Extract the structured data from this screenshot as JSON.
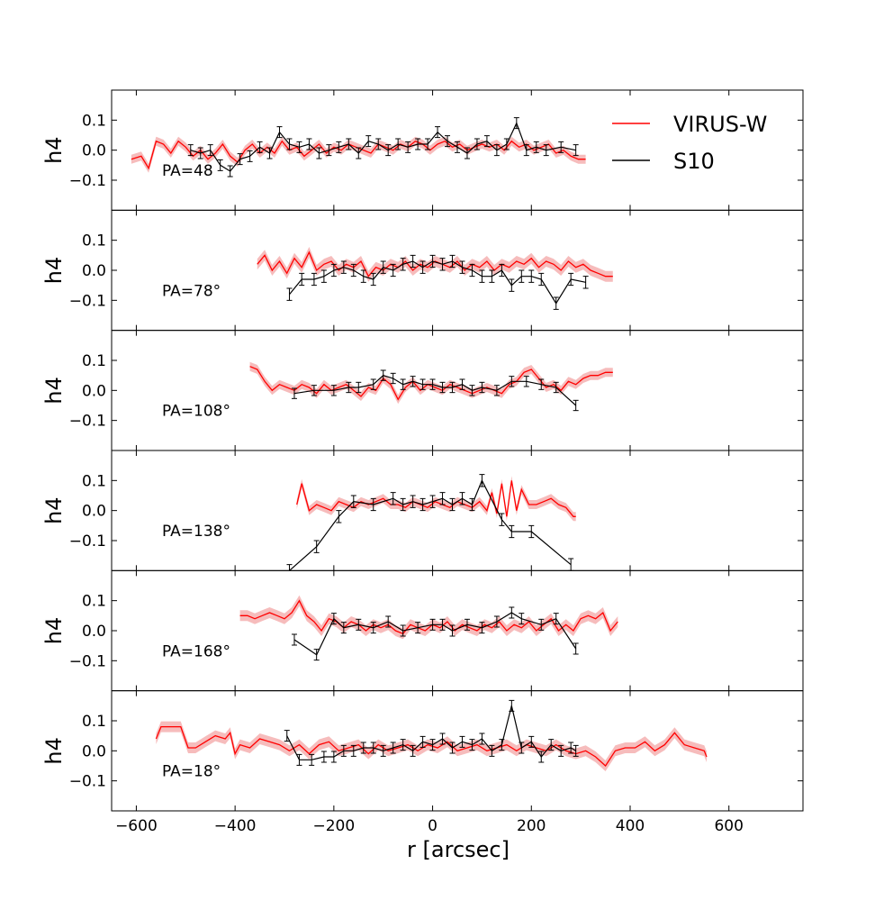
{
  "figure": {
    "xlabel": "r [arcsec]",
    "ylabel": "h4",
    "legend": {
      "placement": "top-right",
      "entries": [
        {
          "label": "VIRUS-W",
          "color": "#ff0000"
        },
        {
          "label": "S10",
          "color": "#000000"
        }
      ]
    },
    "colors": {
      "virus": "#ff0000",
      "virus_band": "#f4b0b0",
      "s10": "#000000"
    }
  },
  "chart_data": {
    "type": "line",
    "shared_xlim": [
      -650,
      750
    ],
    "shared_ylim": [
      -0.2,
      0.2
    ],
    "xticks": [
      -600,
      -400,
      -200,
      0,
      200,
      400,
      600
    ],
    "xtick_labels": [
      "−600",
      "−400",
      "−200",
      "0",
      "200",
      "400",
      "600"
    ],
    "yticks": [
      0.1,
      0.0,
      -0.1
    ],
    "ytick_labels": [
      "0.1",
      "0.0",
      "−0.1"
    ],
    "panels": [
      {
        "label": "PA=48",
        "virus": {
          "x": [
            -610,
            -590,
            -575,
            -560,
            -545,
            -530,
            -515,
            -500,
            -485,
            -470,
            -455,
            -440,
            -425,
            -410,
            -395,
            -380,
            -365,
            -350,
            -335,
            -320,
            -305,
            -290,
            -275,
            -260,
            -245,
            -230,
            -215,
            -200,
            -185,
            -170,
            -155,
            -140,
            -125,
            -110,
            -95,
            -80,
            -65,
            -50,
            -35,
            -20,
            -5,
            10,
            25,
            40,
            55,
            70,
            85,
            100,
            115,
            130,
            145,
            160,
            175,
            190,
            205,
            220,
            235,
            250,
            265,
            280,
            295,
            310
          ],
          "y": [
            -0.03,
            -0.02,
            -0.06,
            0.03,
            0.02,
            -0.01,
            0.03,
            0.01,
            -0.02,
            0.0,
            -0.03,
            -0.01,
            0.02,
            -0.02,
            -0.04,
            0.0,
            0.02,
            -0.01,
            0.01,
            -0.01,
            0.03,
            0.0,
            0.01,
            -0.02,
            0.0,
            0.02,
            -0.01,
            0.01,
            0.0,
            0.02,
            0.01,
            0.0,
            -0.01,
            0.02,
            0.01,
            0.0,
            0.02,
            0.01,
            0.03,
            0.02,
            0.0,
            0.02,
            0.03,
            0.01,
            0.02,
            0.0,
            0.01,
            0.02,
            0.01,
            0.02,
            0.0,
            0.03,
            0.01,
            0.02,
            0.0,
            0.01,
            0.02,
            -0.01,
            0.0,
            -0.02,
            -0.03,
            -0.03
          ],
          "err": 0.015
        },
        "s10": {
          "x": [
            -490,
            -470,
            -450,
            -430,
            -410,
            -390,
            -370,
            -350,
            -330,
            -310,
            -290,
            -270,
            -250,
            -230,
            -210,
            -190,
            -170,
            -150,
            -130,
            -110,
            -90,
            -70,
            -50,
            -30,
            -10,
            10,
            30,
            50,
            70,
            90,
            110,
            130,
            150,
            170,
            190,
            210,
            230,
            260,
            290
          ],
          "y": [
            0.0,
            -0.01,
            0.0,
            -0.05,
            -0.07,
            -0.03,
            -0.02,
            0.01,
            -0.01,
            0.06,
            0.02,
            0.01,
            0.02,
            -0.01,
            0.0,
            0.01,
            0.02,
            -0.01,
            0.03,
            0.02,
            0.0,
            0.02,
            0.01,
            0.02,
            0.02,
            0.06,
            0.03,
            0.01,
            -0.01,
            0.02,
            0.03,
            0.0,
            0.02,
            0.09,
            0.0,
            0.01,
            0.0,
            0.01,
            0.0
          ],
          "err": 0.018
        }
      },
      {
        "label": "PA=78°",
        "virus": {
          "x": [
            -355,
            -340,
            -325,
            -310,
            -295,
            -280,
            -265,
            -250,
            -235,
            -220,
            -205,
            -190,
            -175,
            -160,
            -145,
            -130,
            -115,
            -100,
            -85,
            -70,
            -55,
            -40,
            -25,
            -10,
            5,
            20,
            35,
            50,
            65,
            80,
            95,
            110,
            125,
            140,
            155,
            170,
            185,
            200,
            215,
            230,
            245,
            260,
            275,
            290,
            305,
            320,
            335,
            350,
            365
          ],
          "y": [
            0.02,
            0.05,
            0.0,
            0.03,
            -0.01,
            0.04,
            0.01,
            0.06,
            0.0,
            0.02,
            0.03,
            0.0,
            0.02,
            0.01,
            0.03,
            -0.02,
            0.01,
            0.0,
            0.02,
            0.01,
            0.03,
            0.0,
            0.02,
            0.01,
            0.03,
            0.02,
            0.01,
            0.03,
            0.0,
            0.02,
            0.01,
            0.03,
            0.0,
            0.02,
            0.01,
            0.03,
            0.02,
            0.04,
            0.01,
            0.03,
            0.02,
            0.0,
            0.03,
            0.01,
            0.02,
            0.0,
            -0.01,
            -0.02,
            -0.02
          ],
          "err": 0.018
        },
        "s10": {
          "x": [
            -290,
            -265,
            -240,
            -220,
            -200,
            -180,
            -160,
            -140,
            -120,
            -100,
            -80,
            -60,
            -40,
            -20,
            0,
            20,
            40,
            60,
            80,
            100,
            120,
            140,
            160,
            180,
            200,
            220,
            250,
            280,
            310
          ],
          "y": [
            -0.08,
            -0.03,
            -0.03,
            -0.02,
            0.0,
            0.01,
            0.0,
            -0.02,
            -0.03,
            0.01,
            0.0,
            0.02,
            0.03,
            0.01,
            0.03,
            0.02,
            0.03,
            0.01,
            0.0,
            -0.02,
            -0.02,
            0.0,
            -0.05,
            -0.02,
            -0.02,
            -0.03,
            -0.11,
            -0.03,
            -0.04
          ],
          "err": 0.02
        }
      },
      {
        "label": "PA=108°",
        "virus": {
          "x": [
            -370,
            -355,
            -340,
            -325,
            -310,
            -295,
            -280,
            -265,
            -250,
            -235,
            -220,
            -205,
            -190,
            -175,
            -160,
            -145,
            -130,
            -115,
            -100,
            -85,
            -70,
            -55,
            -40,
            -25,
            -10,
            5,
            20,
            35,
            50,
            65,
            80,
            95,
            110,
            125,
            140,
            155,
            170,
            185,
            200,
            215,
            230,
            245,
            260,
            275,
            290,
            305,
            320,
            335,
            350,
            365
          ],
          "y": [
            0.08,
            0.07,
            0.03,
            0.0,
            0.02,
            0.01,
            0.0,
            0.02,
            0.01,
            -0.01,
            0.02,
            0.0,
            0.01,
            0.02,
            0.0,
            -0.02,
            0.01,
            0.0,
            0.04,
            0.02,
            -0.03,
            0.01,
            0.03,
            0.0,
            0.02,
            0.01,
            0.0,
            0.02,
            0.01,
            0.0,
            -0.01,
            0.0,
            0.01,
            0.0,
            -0.01,
            0.02,
            0.03,
            0.06,
            0.07,
            0.04,
            0.01,
            0.02,
            0.0,
            0.03,
            0.02,
            0.04,
            0.05,
            0.05,
            0.06,
            0.06
          ],
          "err": 0.015
        },
        "s10": {
          "x": [
            -280,
            -240,
            -200,
            -170,
            -150,
            -120,
            -100,
            -80,
            -60,
            -40,
            -20,
            0,
            20,
            40,
            60,
            80,
            100,
            130,
            160,
            190,
            220,
            250,
            290
          ],
          "y": [
            -0.01,
            0.0,
            0.0,
            0.01,
            0.01,
            0.02,
            0.05,
            0.04,
            0.02,
            0.03,
            0.02,
            0.02,
            0.01,
            0.01,
            0.02,
            0.0,
            0.01,
            0.0,
            0.03,
            0.03,
            0.02,
            0.01,
            -0.05
          ],
          "err": 0.017
        }
      },
      {
        "label": "PA=138°",
        "virus": {
          "x": [
            -275,
            -265,
            -250,
            -235,
            -220,
            -205,
            -190,
            -175,
            -160,
            -145,
            -130,
            -115,
            -100,
            -85,
            -70,
            -55,
            -40,
            -25,
            -10,
            5,
            20,
            35,
            50,
            65,
            80,
            95,
            110,
            120,
            130,
            140,
            150,
            160,
            170,
            180,
            195,
            210,
            225,
            240,
            255,
            270,
            285,
            290
          ],
          "y": [
            0.02,
            0.09,
            0.0,
            0.02,
            0.01,
            0.0,
            0.03,
            0.02,
            0.01,
            0.03,
            0.02,
            0.03,
            0.04,
            0.02,
            0.02,
            0.01,
            0.03,
            0.02,
            0.01,
            0.03,
            0.02,
            0.01,
            0.03,
            0.02,
            0.01,
            0.03,
            0.0,
            0.06,
            -0.01,
            0.09,
            -0.02,
            0.1,
            0.0,
            0.07,
            0.02,
            0.02,
            0.03,
            0.04,
            0.02,
            0.01,
            -0.02,
            -0.02
          ],
          "err": 0.015
        },
        "s10": {
          "x": [
            -290,
            -235,
            -190,
            -160,
            -120,
            -80,
            -60,
            -40,
            -20,
            0,
            20,
            40,
            60,
            80,
            100,
            140,
            160,
            200,
            280
          ],
          "y": [
            -0.2,
            -0.12,
            -0.02,
            0.03,
            0.02,
            0.04,
            0.02,
            0.03,
            0.02,
            0.03,
            0.04,
            0.02,
            0.04,
            0.02,
            0.1,
            -0.03,
            -0.07,
            -0.07,
            -0.18
          ],
          "err": 0.02
        }
      },
      {
        "label": "PA=168°",
        "virus": {
          "x": [
            -390,
            -375,
            -360,
            -345,
            -330,
            -315,
            -300,
            -285,
            -270,
            -255,
            -240,
            -225,
            -210,
            -195,
            -180,
            -165,
            -150,
            -135,
            -120,
            -105,
            -90,
            -75,
            -60,
            -45,
            -30,
            -15,
            0,
            15,
            30,
            45,
            60,
            75,
            90,
            105,
            120,
            135,
            150,
            165,
            180,
            195,
            210,
            225,
            240,
            255,
            270,
            285,
            300,
            315,
            330,
            345,
            360,
            375
          ],
          "y": [
            0.05,
            0.05,
            0.04,
            0.05,
            0.06,
            0.05,
            0.04,
            0.06,
            0.1,
            0.05,
            0.03,
            0.0,
            0.04,
            0.03,
            0.01,
            0.03,
            0.02,
            0.0,
            0.02,
            0.01,
            0.02,
            0.0,
            -0.01,
            0.02,
            0.01,
            0.0,
            0.02,
            0.01,
            0.03,
            0.0,
            0.02,
            0.01,
            0.0,
            0.02,
            0.01,
            0.03,
            0.0,
            0.02,
            0.01,
            0.03,
            0.0,
            0.02,
            0.04,
            0.0,
            0.02,
            0.0,
            0.04,
            0.05,
            0.04,
            0.06,
            0.0,
            0.03
          ],
          "err": 0.018
        },
        "s10": {
          "x": [
            -280,
            -235,
            -200,
            -180,
            -150,
            -120,
            -90,
            -60,
            -30,
            0,
            20,
            40,
            70,
            100,
            130,
            160,
            180,
            220,
            250,
            290
          ],
          "y": [
            -0.03,
            -0.08,
            0.04,
            0.01,
            0.02,
            0.01,
            0.03,
            0.0,
            0.01,
            0.02,
            0.02,
            0.0,
            0.02,
            0.01,
            0.03,
            0.06,
            0.04,
            0.02,
            0.04,
            -0.06
          ],
          "err": 0.018
        }
      },
      {
        "label": "PA=18°",
        "virus": {
          "x": [
            -560,
            -550,
            -530,
            -510,
            -495,
            -480,
            -460,
            -440,
            -420,
            -410,
            -400,
            -390,
            -370,
            -350,
            -330,
            -310,
            -290,
            -270,
            -250,
            -230,
            -210,
            -190,
            -170,
            -150,
            -130,
            -110,
            -90,
            -70,
            -50,
            -30,
            -10,
            10,
            30,
            50,
            70,
            90,
            110,
            130,
            150,
            170,
            190,
            210,
            230,
            250,
            270,
            290,
            310,
            330,
            350,
            370,
            390,
            410,
            430,
            450,
            470,
            490,
            510,
            530,
            550,
            555
          ],
          "y": [
            0.04,
            0.08,
            0.08,
            0.08,
            0.01,
            0.01,
            0.03,
            0.05,
            0.04,
            0.06,
            -0.01,
            0.02,
            0.01,
            0.04,
            0.03,
            0.02,
            0.0,
            0.02,
            -0.01,
            0.02,
            0.03,
            0.0,
            0.01,
            0.02,
            -0.01,
            0.02,
            0.0,
            0.01,
            0.02,
            0.0,
            0.02,
            0.01,
            0.03,
            0.0,
            0.01,
            0.02,
            0.0,
            0.01,
            0.02,
            0.0,
            0.02,
            0.01,
            0.0,
            0.02,
            0.0,
            -0.01,
            0.0,
            -0.02,
            -0.05,
            0.0,
            0.01,
            0.01,
            0.03,
            0.0,
            0.02,
            0.06,
            0.02,
            0.01,
            0.0,
            -0.02
          ],
          "err": 0.018
        },
        "s10": {
          "x": [
            -295,
            -270,
            -245,
            -220,
            -200,
            -180,
            -160,
            -140,
            -120,
            -100,
            -80,
            -60,
            -40,
            -20,
            0,
            20,
            40,
            60,
            80,
            100,
            120,
            140,
            160,
            180,
            200,
            220,
            240,
            260,
            280,
            290
          ],
          "y": [
            0.05,
            -0.03,
            -0.03,
            -0.02,
            -0.02,
            0.0,
            0.0,
            0.01,
            0.01,
            0.0,
            0.01,
            0.02,
            0.0,
            0.03,
            0.02,
            0.04,
            0.01,
            0.03,
            0.02,
            0.04,
            0.0,
            0.02,
            0.15,
            0.01,
            0.03,
            -0.02,
            0.02,
            0.0,
            0.01,
            0.0
          ],
          "err": 0.018
        }
      }
    ]
  }
}
